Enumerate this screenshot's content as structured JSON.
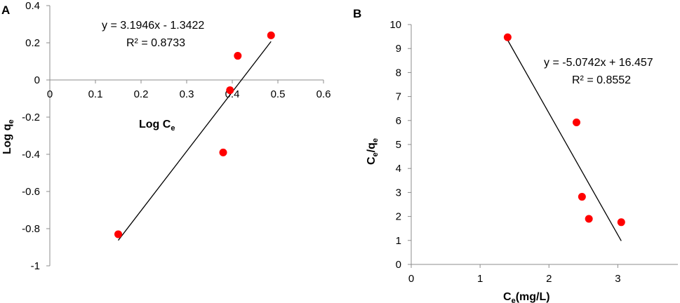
{
  "chart_data": [
    {
      "type": "scatter",
      "panel_label": "A",
      "xlabel": "Log C",
      "xlabel_sub": "e",
      "ylabel": "Log q",
      "ylabel_sub": "e",
      "xlim": [
        0,
        0.6
      ],
      "ylim": [
        -1,
        0.4
      ],
      "x_ticks": [
        0,
        0.1,
        0.2,
        0.3,
        0.4,
        0.5,
        0.6
      ],
      "y_ticks": [
        -1,
        -0.8,
        -0.6,
        -0.4,
        -0.2,
        0,
        0.2,
        0.4
      ],
      "x_tick_labels": [
        "0",
        "0.1",
        "0.2",
        "0.3",
        "0.4",
        "0.5",
        "0.6"
      ],
      "y_tick_labels": [
        "-1",
        "-0.8",
        "-0.6",
        "-0.4",
        "-0.2",
        "0",
        "0.2",
        "0.4"
      ],
      "points": [
        {
          "x": 0.15,
          "y": -0.83
        },
        {
          "x": 0.38,
          "y": -0.39
        },
        {
          "x": 0.395,
          "y": -0.055
        },
        {
          "x": 0.412,
          "y": 0.13
        },
        {
          "x": 0.485,
          "y": 0.24
        }
      ],
      "trendline": {
        "slope": 3.1946,
        "intercept": -1.3422,
        "x_range": [
          0.15,
          0.485
        ]
      },
      "equation": "y = 3.1946x - 1.3422",
      "r_squared": "R² = 0.8733",
      "marker_color": "#ff0000",
      "line_color": "#000000",
      "grid": false
    },
    {
      "type": "scatter",
      "panel_label": "B",
      "xlabel": "C",
      "xlabel_sub": "e",
      "xlabel_suffix": "(mg/L)",
      "ylabel": "C",
      "ylabel_sub": "e",
      "ylabel_mid": "/q",
      "ylabel_sub2": "e",
      "xlim": [
        0,
        4
      ],
      "ylim": [
        0,
        10
      ],
      "x_ticks": [
        0,
        1,
        2,
        3
      ],
      "y_ticks": [
        0,
        1,
        2,
        3,
        4,
        5,
        6,
        7,
        8,
        9,
        10
      ],
      "x_tick_labels": [
        "0",
        "1",
        "2",
        "3"
      ],
      "y_tick_labels": [
        "0",
        "1",
        "2",
        "3",
        "4",
        "5",
        "6",
        "7",
        "8",
        "9",
        "10"
      ],
      "points": [
        {
          "x": 1.4,
          "y": 9.47
        },
        {
          "x": 2.4,
          "y": 5.92
        },
        {
          "x": 2.48,
          "y": 2.82
        },
        {
          "x": 2.58,
          "y": 1.9
        },
        {
          "x": 3.05,
          "y": 1.76
        }
      ],
      "trendline": {
        "slope": -5.0742,
        "intercept": 16.457,
        "x_range": [
          1.4,
          3.05
        ]
      },
      "equation": "y = -5.0742x + 16.457",
      "r_squared": "R² = 0.8552",
      "marker_color": "#ff0000",
      "line_color": "#000000",
      "grid": false
    }
  ]
}
